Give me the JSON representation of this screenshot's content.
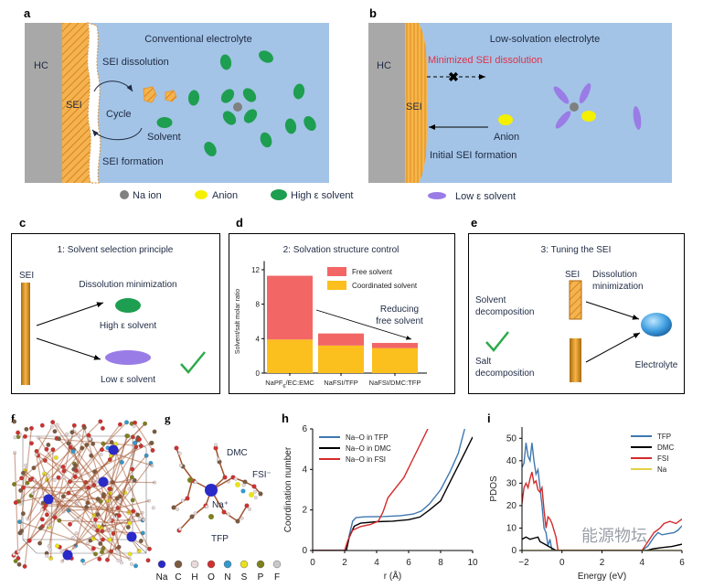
{
  "panels": {
    "a": {
      "label": "a",
      "title": "Conventional electrolyte",
      "hc": "HC",
      "sei": "SEI",
      "sei_dissolution": "SEI dissolution",
      "cycle": "Cycle",
      "solvent": "Solvent",
      "sei_formation": "SEI formation"
    },
    "b": {
      "label": "b",
      "title": "Low-solvation electrolyte",
      "hc": "HC",
      "sei": "SEI",
      "minimized": "Minimized SEI dissolution",
      "anion": "Anion",
      "initial_sei": "Initial SEI formation"
    },
    "legend_ab": {
      "na_ion": "Na ion",
      "anion": "Anion",
      "high_solvent": "High ε solvent",
      "low_solvent": "Low ε solvent"
    },
    "c": {
      "label": "c",
      "title": "1: Solvent selection principle",
      "sei": "SEI",
      "dissolution": "Dissolution minimization",
      "high": "High ε solvent",
      "low": "Low ε solvent"
    },
    "d": {
      "label": "d",
      "title": "2: Solvation structure control",
      "annotation_line1": "Reducing",
      "annotation_line2": "free solvent"
    },
    "e": {
      "label": "e",
      "title": "3: Tuning the SEI",
      "sei": "SEI",
      "dissolution1": "Dissolution",
      "dissolution2": "minimization",
      "solvent1": "Solvent",
      "solvent2": "decomposition",
      "salt1": "Salt",
      "salt2": "decomposition",
      "electrolyte": "Electrolyte"
    },
    "f": {
      "label": "f"
    },
    "g": {
      "label": "g",
      "dmc": "DMC",
      "fsi": "FSI⁻",
      "na": "Na⁺",
      "tfp": "TFP",
      "atoms": [
        {
          "symbol": "Na",
          "color": "#2a2ac8"
        },
        {
          "symbol": "C",
          "color": "#7a5a40"
        },
        {
          "symbol": "H",
          "color": "#e8dada"
        },
        {
          "symbol": "O",
          "color": "#d03030"
        },
        {
          "symbol": "N",
          "color": "#3399cc"
        },
        {
          "symbol": "S",
          "color": "#e8e020"
        },
        {
          "symbol": "P",
          "color": "#7d8020"
        },
        {
          "symbol": "F",
          "color": "#c8c8c8"
        }
      ]
    },
    "h": {
      "label": "h"
    },
    "i": {
      "label": "i"
    }
  },
  "colors": {
    "electrolyte_bg": "#a3c4e6",
    "hc": "#a8a8a8",
    "sei": "#f2a93b",
    "high_solvent": "#1e9e50",
    "low_solvent": "#9a7ce6",
    "anion": "#f4f000",
    "na_ion": "#808080",
    "minimized_text": "#e0304a"
  },
  "watermark": "能源物坛",
  "chart_data": [
    {
      "id": "d",
      "type": "bar",
      "stacked": true,
      "categories": [
        "NaPF6/EC:EMC",
        "NaFSI/TFP",
        "NaFSI/DMC:TFP"
      ],
      "category_labels": [
        {
          "main": "NaPF",
          "sub": "6",
          "rest": "/EC:EMC"
        },
        {
          "main": "NaFSI/TFP"
        },
        {
          "main": "NaFSI/DMC:TFP"
        }
      ],
      "series": [
        {
          "name": "Coordinated solvent",
          "values": [
            3.9,
            3.2,
            2.9
          ],
          "color": "#fbbf1e"
        },
        {
          "name": "Free solvent",
          "values": [
            7.4,
            1.4,
            0.6
          ],
          "color": "#f26666"
        }
      ],
      "ylabel": "Solvent/salt molar ratio",
      "ylim": [
        0,
        13
      ],
      "yticks": [
        0,
        4,
        8,
        12
      ],
      "legend": "top-right"
    },
    {
      "id": "h",
      "type": "line",
      "xlabel": "r (Å)",
      "ylabel": "Coordination number",
      "xlim": [
        0,
        10
      ],
      "ylim": [
        0,
        6
      ],
      "xticks": [
        0,
        2,
        4,
        6,
        8,
        10
      ],
      "yticks": [
        0,
        2,
        4,
        6
      ],
      "legend": "top-left",
      "series": [
        {
          "name": "Na–O in TFP",
          "color": "#3f78b0",
          "points": [
            [
              0,
              0
            ],
            [
              2.1,
              0
            ],
            [
              2.3,
              0.8
            ],
            [
              2.5,
              1.45
            ],
            [
              2.7,
              1.62
            ],
            [
              3.2,
              1.66
            ],
            [
              4.5,
              1.68
            ],
            [
              5.5,
              1.72
            ],
            [
              6.3,
              1.8
            ],
            [
              6.8,
              1.95
            ],
            [
              7.3,
              2.3
            ],
            [
              8,
              3.0
            ],
            [
              8.6,
              3.9
            ],
            [
              9.1,
              4.8
            ],
            [
              9.5,
              6
            ]
          ]
        },
        {
          "name": "Na–O in DMC",
          "color": "#000000",
          "points": [
            [
              0,
              0
            ],
            [
              2.1,
              0
            ],
            [
              2.3,
              0.7
            ],
            [
              2.6,
              1.2
            ],
            [
              3,
              1.35
            ],
            [
              4,
              1.42
            ],
            [
              5,
              1.45
            ],
            [
              6,
              1.52
            ],
            [
              6.7,
              1.65
            ],
            [
              7.3,
              2.0
            ],
            [
              8,
              2.45
            ],
            [
              8.6,
              3.4
            ],
            [
              9.3,
              4.5
            ],
            [
              10,
              5.6
            ]
          ]
        },
        {
          "name": "Na–O in FSI",
          "color": "#d42a2a",
          "points": [
            [
              0,
              0
            ],
            [
              2.0,
              0
            ],
            [
              2.2,
              0.5
            ],
            [
              2.5,
              1.0
            ],
            [
              3,
              1.18
            ],
            [
              3.6,
              1.28
            ],
            [
              4.1,
              1.45
            ],
            [
              4.4,
              1.9
            ],
            [
              4.7,
              2.6
            ],
            [
              5.2,
              3.1
            ],
            [
              5.7,
              3.6
            ],
            [
              6.2,
              4.4
            ],
            [
              6.7,
              5.2
            ],
            [
              7.2,
              6
            ]
          ]
        }
      ]
    },
    {
      "id": "i",
      "type": "line",
      "xlabel": "Energy (eV)",
      "ylabel": "PDOS",
      "xlim": [
        -2,
        6
      ],
      "ylim": [
        0,
        55
      ],
      "xticks": [
        -2,
        0,
        2,
        4,
        6
      ],
      "yticks": [
        0,
        10,
        20,
        30,
        40,
        50
      ],
      "legend": "top-right",
      "series": [
        {
          "name": "TFP",
          "color": "#3f78b0",
          "points": [
            [
              -2,
              37
            ],
            [
              -1.9,
              39
            ],
            [
              -1.8,
              48
            ],
            [
              -1.7,
              42
            ],
            [
              -1.6,
              40
            ],
            [
              -1.5,
              48
            ],
            [
              -1.4,
              40
            ],
            [
              -1.3,
              34
            ],
            [
              -1.2,
              36
            ],
            [
              -1.1,
              28
            ],
            [
              -1.0,
              20
            ],
            [
              -0.9,
              10
            ],
            [
              -0.8,
              8
            ],
            [
              -0.7,
              2
            ],
            [
              -0.6,
              5
            ],
            [
              -0.5,
              0
            ],
            [
              4,
              0
            ],
            [
              4.3,
              2
            ],
            [
              4.6,
              6
            ],
            [
              4.8,
              8
            ],
            [
              5.0,
              7
            ],
            [
              5.3,
              7.5
            ],
            [
              5.6,
              8
            ],
            [
              5.8,
              9
            ],
            [
              6,
              11
            ]
          ]
        },
        {
          "name": "DMC",
          "color": "#000000",
          "points": [
            [
              -2,
              5
            ],
            [
              -1.8,
              6
            ],
            [
              -1.6,
              5
            ],
            [
              -1.4,
              5.5
            ],
            [
              -1.2,
              6
            ],
            [
              -1.1,
              4
            ],
            [
              -0.9,
              3
            ],
            [
              -0.7,
              2
            ],
            [
              -0.5,
              1
            ],
            [
              -0.3,
              0
            ],
            [
              4.2,
              0
            ],
            [
              4.6,
              0.8
            ],
            [
              5,
              1.3
            ],
            [
              5.5,
              1.8
            ],
            [
              6,
              2.8
            ]
          ]
        },
        {
          "name": "FSI",
          "color": "#d42a2a",
          "points": [
            [
              -2,
              21
            ],
            [
              -1.9,
              28
            ],
            [
              -1.8,
              30
            ],
            [
              -1.7,
              28
            ],
            [
              -1.6,
              32
            ],
            [
              -1.5,
              35
            ],
            [
              -1.4,
              30
            ],
            [
              -1.3,
              31
            ],
            [
              -1.2,
              27
            ],
            [
              -1.1,
              26
            ],
            [
              -1.0,
              28
            ],
            [
              -0.9,
              18
            ],
            [
              -0.8,
              10
            ],
            [
              -0.7,
              15
            ],
            [
              -0.6,
              14
            ],
            [
              -0.5,
              12
            ],
            [
              -0.4,
              9
            ],
            [
              -0.3,
              6
            ],
            [
              -0.2,
              0
            ],
            [
              4,
              0
            ],
            [
              4.3,
              4
            ],
            [
              4.6,
              8
            ],
            [
              4.9,
              10
            ],
            [
              5.1,
              12
            ],
            [
              5.4,
              13
            ],
            [
              5.7,
              12
            ],
            [
              6,
              14
            ]
          ]
        },
        {
          "name": "Na",
          "color": "#e4d040",
          "points": [
            [
              -2,
              0
            ],
            [
              6,
              0
            ]
          ]
        }
      ]
    }
  ]
}
